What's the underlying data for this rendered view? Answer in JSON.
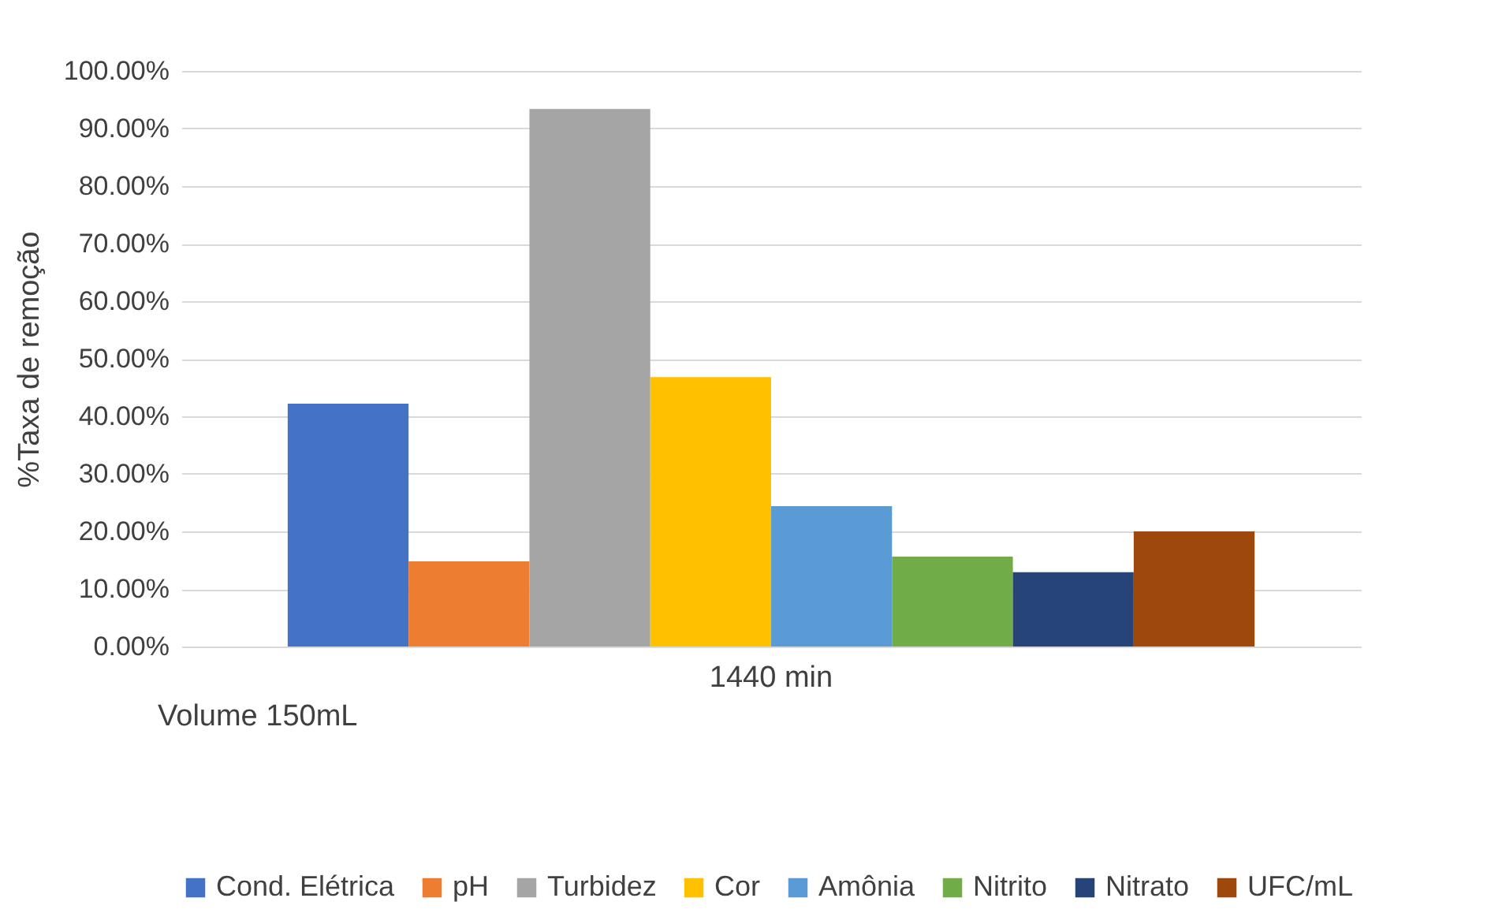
{
  "chart_data": {
    "type": "bar",
    "ylabel": "%Taxa de remoção",
    "categories": [
      "1440 min"
    ],
    "series": [
      {
        "name": "Cond. Elétrica",
        "color": "#4472c4",
        "values": [
          42.2
        ]
      },
      {
        "name": "pH",
        "color": "#ed7d31",
        "values": [
          14.8
        ]
      },
      {
        "name": "Turbidez",
        "color": "#a5a5a5",
        "values": [
          93.4
        ]
      },
      {
        "name": "Cor",
        "color": "#ffc000",
        "values": [
          46.8
        ]
      },
      {
        "name": "Amônia",
        "color": "#5b9bd5",
        "values": [
          24.4
        ]
      },
      {
        "name": "Nitrito",
        "color": "#70ad47",
        "values": [
          15.6
        ]
      },
      {
        "name": "Nitrato",
        "color": "#264478",
        "values": [
          12.9
        ]
      },
      {
        "name": "UFC/mL",
        "color": "#9e480e",
        "values": [
          20.0
        ]
      }
    ],
    "ylim": [
      0,
      100
    ],
    "yticks": [
      {
        "value": 0,
        "label": "0.00%"
      },
      {
        "value": 10,
        "label": "10.00%"
      },
      {
        "value": 20,
        "label": "20.00%"
      },
      {
        "value": 30,
        "label": "30.00%"
      },
      {
        "value": 40,
        "label": "40.00%"
      },
      {
        "value": 50,
        "label": "50.00%"
      },
      {
        "value": 60,
        "label": "60.00%"
      },
      {
        "value": 70,
        "label": "70.00%"
      },
      {
        "value": 80,
        "label": "80.00%"
      },
      {
        "value": 90,
        "label": "90.00%"
      },
      {
        "value": 100,
        "label": "100.00%"
      }
    ],
    "grid": "y",
    "legend": "bottom",
    "annotations": [
      "Volume 150mL"
    ]
  }
}
